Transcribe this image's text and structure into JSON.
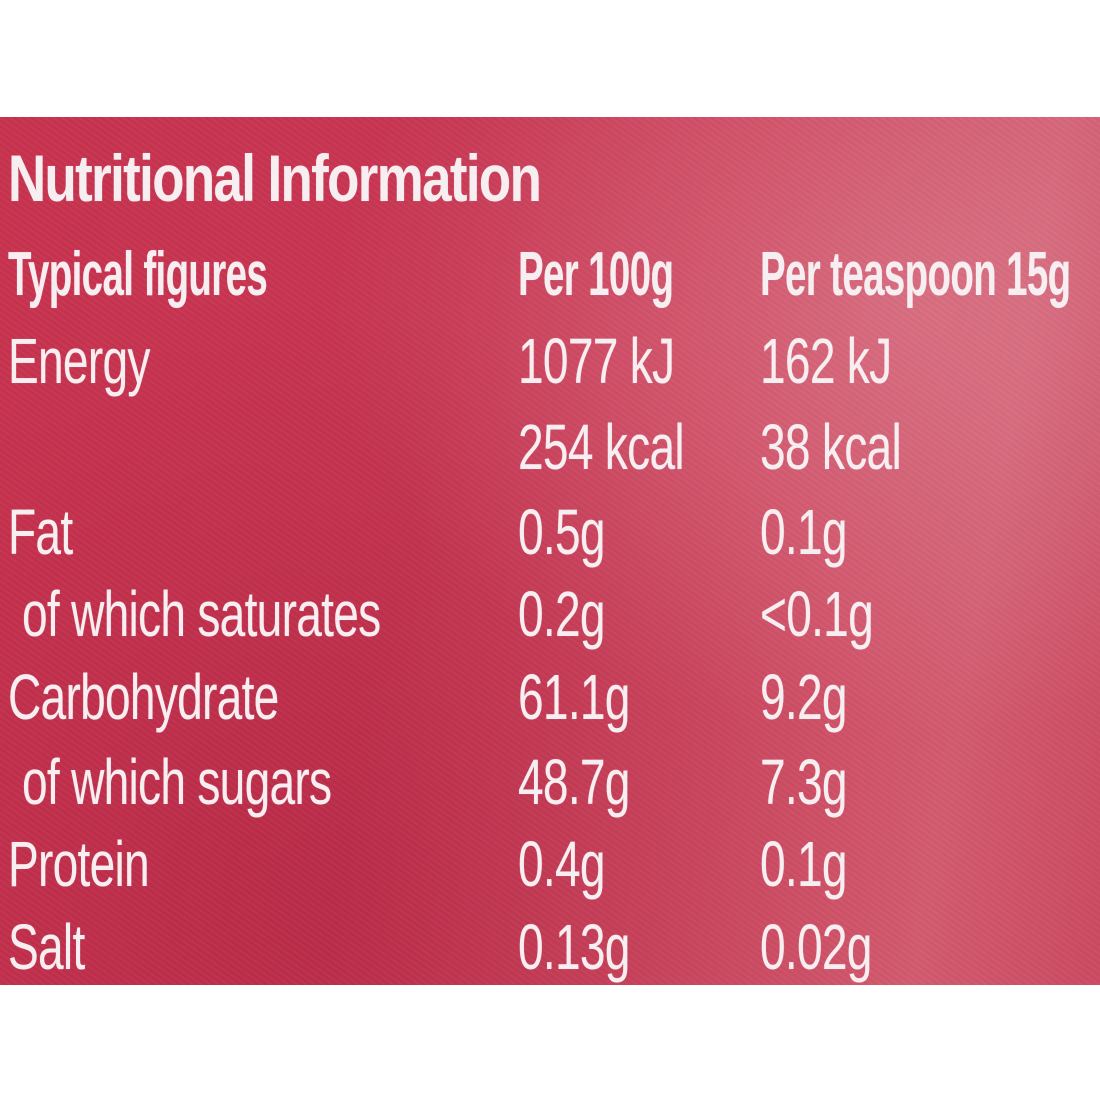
{
  "label": {
    "title": "Nutritional Information",
    "headers": {
      "name": "Typical figures",
      "per_100g": "Per 100g",
      "per_teaspoon": "Per teaspoon 15g"
    },
    "rows": [
      {
        "name": "Energy",
        "per_100g": "1077 kJ",
        "per_teaspoon": "162 kJ"
      },
      {
        "name": "",
        "per_100g": "254 kcal",
        "per_teaspoon": "38 kcal"
      },
      {
        "name": "Fat",
        "per_100g": "0.5g",
        "per_teaspoon": "0.1g"
      },
      {
        "name": "of which saturates",
        "per_100g": "0.2g",
        "per_teaspoon": "<0.1g"
      },
      {
        "name": "Carbohydrate",
        "per_100g": "61.1g",
        "per_teaspoon": "9.2g"
      },
      {
        "name": "of which sugars",
        "per_100g": "48.7g",
        "per_teaspoon": "7.3g"
      },
      {
        "name": "Protein",
        "per_100g": "0.4g",
        "per_teaspoon": "0.1g"
      },
      {
        "name": "Salt",
        "per_100g": "0.13g",
        "per_teaspoon": "0.02g"
      }
    ]
  }
}
